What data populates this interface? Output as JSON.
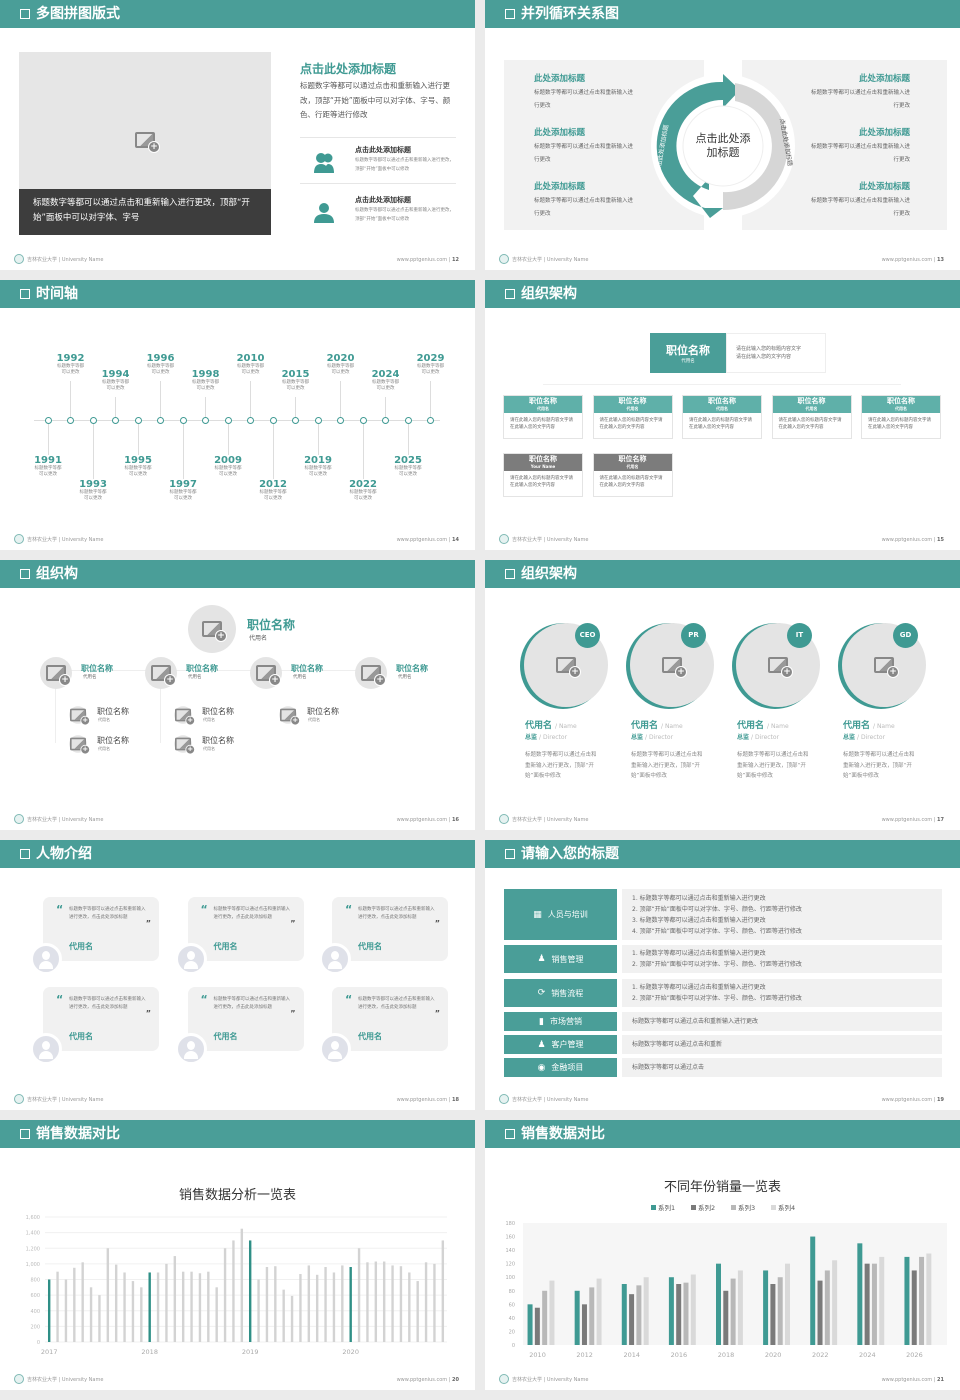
{
  "footer": {
    "school": "吉林农业大学 | University Name",
    "site": "www.pptgenius.com"
  },
  "colors": {
    "accent": "#4a9e98",
    "dark": "#3d3d3d",
    "gray": "#e4e4e4"
  },
  "slides": [
    {
      "title": "多图拼图版式",
      "page": "12",
      "caption": "标题数字等都可以通过点击和重新输入进行更改，顶部“开始”面板中可以对字体、字号",
      "main_title": "点击此处添加标题",
      "main_text": "标题数字等都可以通过点击和重新输入进行更改，顶部“开始”面板中可以对字体、字号、颜色、行距等进行修改",
      "items": [
        {
          "icon": "users-icon",
          "title": "点击此处添加标题",
          "text": "标题数字等都可以通过点击和重新输入进行更改，顶部“开始”面板中可以修改"
        },
        {
          "icon": "user-icon",
          "title": "点击此处添加标题",
          "text": "标题数字等都可以通过点击和重新输入进行更改，顶部“开始”面板中可以修改"
        }
      ]
    },
    {
      "title": "并列循环关系图",
      "page": "13",
      "center": "点击此处添加标题",
      "arrow_left": "点击此处添加标题",
      "arrow_right": "点击此处添加标题",
      "items": [
        {
          "title": "此处添加标题",
          "text": "标题数字等都可以通过点击和重新输入进行更改"
        },
        {
          "title": "此处添加标题",
          "text": "标题数字等都可以通过点击和重新输入进行更改"
        },
        {
          "title": "此处添加标题",
          "text": "标题数字等都可以通过点击和重新输入进行更改"
        },
        {
          "title": "此处添加标题",
          "text": "标题数字等都可以通过点击和重新输入进行更改"
        },
        {
          "title": "此处添加标题",
          "text": "标题数字等都可以通过点击和重新输入进行更改"
        },
        {
          "title": "此处添加标题",
          "text": "标题数字等都可以通过点击和重新输入进行更改"
        }
      ]
    },
    {
      "title": "时间轴",
      "page": "14",
      "desc1": "标题数字等都",
      "desc2": "可以更改",
      "years": [
        "1991",
        "1992",
        "1993",
        "1994",
        "1995",
        "1996",
        "1997",
        "1998",
        "2009",
        "2010",
        "2012",
        "2015",
        "2019",
        "2020",
        "2022",
        "2024",
        "2025",
        "2029"
      ]
    },
    {
      "title": "组织架构",
      "page": "15",
      "top": {
        "title": "职位名称",
        "sub": "代用名",
        "text1": "请在此输入您的标题内容文字",
        "text2": "请在此输入您的文字内容"
      },
      "boxes": [
        {
          "title": "职位名称",
          "sub": "代用名",
          "text": "请在此输入您的标题内容文字请在此输入您的文字内容"
        },
        {
          "title": "职位名称",
          "sub": "代用名",
          "text": "请在此输入您的标题内容文字请在此输入您的文字内容"
        },
        {
          "title": "职位名称",
          "sub": "代用名",
          "text": "请在此输入您的标题内容文字请在此输入您的文字内容"
        },
        {
          "title": "职位名称",
          "sub": "代用名",
          "text": "请在此输入您的标题内容文字请在此输入您的文字内容"
        },
        {
          "title": "职位名称",
          "sub": "代用名",
          "text": "请在此输入您的标题内容文字请在此输入您的文字内容"
        },
        {
          "title": "职位名称",
          "sub": "Your Name",
          "text": "请在此输入您的标题内容文字请在此输入您的文字内容"
        },
        {
          "title": "职位名称",
          "sub": "代用名",
          "text": "请在此输入您的标题内容文字请在此输入您的文字内容"
        }
      ]
    },
    {
      "title": "组织构",
      "page": "16",
      "top": {
        "title": "职位名称",
        "sub": "代用名"
      },
      "mid": [
        {
          "title": "职位名称",
          "sub": "代用名"
        },
        {
          "title": "职位名称",
          "sub": "代用名"
        },
        {
          "title": "职位名称",
          "sub": "代用名"
        },
        {
          "title": "职位名称",
          "sub": "代用名"
        }
      ],
      "subs": [
        {
          "title": "职位名称",
          "sub": "代用名"
        },
        {
          "title": "职位名称",
          "sub": "代用名"
        },
        {
          "title": "职位名称",
          "sub": "代用名"
        },
        {
          "title": "职位名称",
          "sub": "代用名"
        },
        {
          "title": "职位名称",
          "sub": "代用名"
        }
      ]
    },
    {
      "title": "组织架构",
      "page": "17",
      "people": [
        {
          "badge": "CEO",
          "name": "代用名",
          "name_en": "/ Name",
          "role": "总监",
          "role_en": "/ Director",
          "text": "标题数字等都可以通过点击和重新输入进行更改，顶部“开始”面板中修改"
        },
        {
          "badge": "PR",
          "name": "代用名",
          "name_en": "/ Name",
          "role": "总监",
          "role_en": "/ Director",
          "text": "标题数字等都可以通过点击和重新输入进行更改，顶部“开始”面板中修改"
        },
        {
          "badge": "IT",
          "name": "代用名",
          "name_en": "/ Name",
          "role": "总监",
          "role_en": "/ Director",
          "text": "标题数字等都可以通过点击和重新输入进行更改，顶部“开始”面板中修改"
        },
        {
          "badge": "GD",
          "name": "代用名",
          "name_en": "/ Name",
          "role": "总监",
          "role_en": "/ Director",
          "text": "标题数字等都可以通过点击和重新输入进行更改，顶部“开始”面板中修改"
        }
      ]
    },
    {
      "title": "人物介绍",
      "page": "18",
      "cards": [
        {
          "text": "标题数字等都可以通过点击和重新输入进行更改，点击此处添加标题",
          "name": "代用名"
        },
        {
          "text": "标题数字等都可以通过点击和重新输入进行更改，点击此处添加标题",
          "name": "代用名"
        },
        {
          "text": "标题数字等都可以通过点击和重新输入进行更改，点击此处添加标题",
          "name": "代用名"
        },
        {
          "text": "标题数字等都可以通过点击和重新输入进行更改，点击此处添加标题",
          "name": "代用名"
        },
        {
          "text": "标题数字等都可以通过点击和重新输入进行更改，点击此处添加标题",
          "name": "代用名"
        },
        {
          "text": "标题数字等都可以通过点击和重新输入进行更改，点击此处添加标题",
          "name": "代用名"
        }
      ]
    },
    {
      "title": "请输入您的标题",
      "page": "19",
      "rows": [
        {
          "icon": "training-icon",
          "label": "人员与培训",
          "lines": [
            "1.   标题数字等都可以通过点击和重新输入进行更改",
            "2.   顶部“开始”面板中可以对字体、字号、颜色、行距等进行修改",
            "3.   标题数字等都可以通过点击和重新输入进行更改",
            "4.   顶部“开始”面板中可以对字体、字号、颜色、行距等进行修改"
          ]
        },
        {
          "icon": "sales-management-icon",
          "label": "销售管理",
          "lines": [
            "1.   标题数字等都可以通过点击和重新输入进行更改",
            "2.   顶部“开始”面板中可以对字体、字号、颜色、行距等进行修改"
          ]
        },
        {
          "icon": "process-icon",
          "label": "销售流程",
          "lines": [
            "1.   标题数字等都可以通过点击和重新输入进行更改",
            "2.   顶部“开始”面板中可以对字体、字号、颜色、行距等进行修改"
          ]
        },
        {
          "icon": "bar-chart-icon",
          "label": "市场营销",
          "lines": [
            "标题数字等都可以通过点击和重新输入进行更改"
          ]
        },
        {
          "icon": "customers-icon",
          "label": "客户管理",
          "lines": [
            "标题数字等都可以通过点击和重新"
          ]
        },
        {
          "icon": "finance-icon",
          "label": "金融项目",
          "lines": [
            "标题数字等都可以通过点击"
          ]
        }
      ]
    },
    {
      "title": "销售数据对比",
      "page": "20"
    },
    {
      "title": "销售数据对比",
      "page": "21"
    }
  ],
  "chart_data": [
    {
      "type": "bar",
      "title": "销售数据分析一览表",
      "xlabel": "",
      "ylabel": "",
      "ylim": [
        0,
        1600
      ],
      "yticks": [
        "0",
        "200",
        "400",
        "600",
        "800",
        "1,000",
        "1,200",
        "1,400",
        "1,600"
      ],
      "xtick_labels": [
        "2017",
        "2018",
        "2019",
        "2020"
      ],
      "grid": true,
      "highlight_color": "#2f8f86",
      "bar_color": "#d3d3d3",
      "highlight_every": 12,
      "values": [
        800,
        900,
        800,
        950,
        1020,
        700,
        600,
        1200,
        990,
        890,
        780,
        700,
        890,
        890,
        1000,
        1100,
        900,
        900,
        880,
        900,
        700,
        1200,
        1300,
        1450,
        1300,
        800,
        960,
        970,
        670,
        590,
        870,
        980,
        860,
        960,
        890,
        980,
        960,
        1200,
        1020,
        1030,
        1030,
        980,
        970,
        890,
        780,
        1020,
        1000,
        1300
      ]
    },
    {
      "type": "bar",
      "title": "不同年份销量一览表",
      "xlabel": "",
      "ylabel": "",
      "ylim": [
        0,
        180
      ],
      "legend": "top",
      "grid": false,
      "yticks": [
        "0",
        "20",
        "40",
        "60",
        "80",
        "100",
        "120",
        "140",
        "160",
        "180"
      ],
      "categories": [
        "2010",
        "2012",
        "2014",
        "2016",
        "2018",
        "2020",
        "2022",
        "2024",
        "2026"
      ],
      "series": [
        {
          "name": "系列1",
          "color": "#3f9a93",
          "values": [
            60,
            80,
            90,
            100,
            120,
            110,
            160,
            150,
            130
          ]
        },
        {
          "name": "系列2",
          "color": "#7a7a7a",
          "values": [
            55,
            60,
            75,
            90,
            80,
            90,
            95,
            120,
            110
          ]
        },
        {
          "name": "系列3",
          "color": "#b8b8b8",
          "values": [
            80,
            85,
            88,
            92,
            98,
            100,
            110,
            120,
            130
          ]
        },
        {
          "name": "系列4",
          "color": "#d9d9d9",
          "values": [
            95,
            98,
            100,
            104,
            110,
            120,
            125,
            130,
            135
          ]
        }
      ]
    }
  ]
}
